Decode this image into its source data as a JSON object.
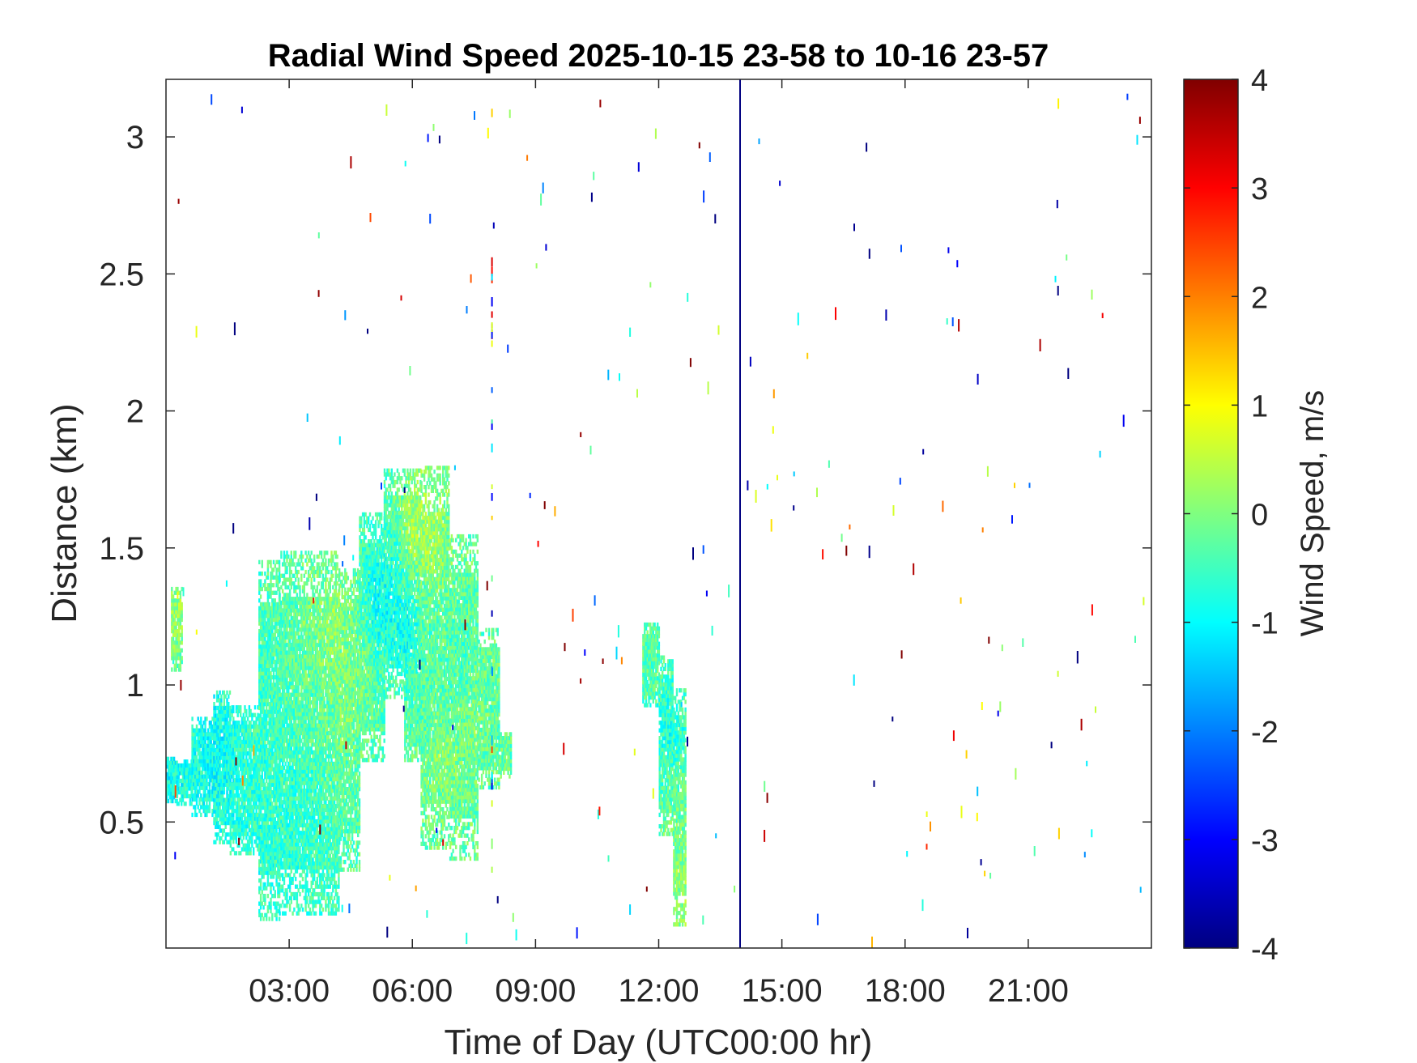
{
  "chart_data": {
    "type": "heatmap",
    "title": "Radial Wind Speed 2025-10-15 23-58 to 10-16 23-57",
    "xlabel": "Time of Day (UTC00:00 hr)",
    "ylabel": "Distance (km)",
    "colorbar_label": "Wind Speed, m/s",
    "x_unit": "hours",
    "xlim": [
      0,
      24
    ],
    "ylim": [
      0.04,
      3.21
    ],
    "clim": [
      -4,
      4
    ],
    "x_ticks": [
      3,
      6,
      9,
      12,
      15,
      18,
      21
    ],
    "x_tick_labels": [
      "03:00",
      "06:00",
      "09:00",
      "12:00",
      "15:00",
      "18:00",
      "21:00"
    ],
    "y_ticks": [
      0.5,
      1,
      1.5,
      2,
      2.5,
      3
    ],
    "y_tick_labels": [
      "0.5",
      "1",
      "1.5",
      "2",
      "2.5",
      "3"
    ],
    "colorbar_ticks": [
      -4,
      -3,
      -2,
      -1,
      0,
      1,
      2,
      3,
      4
    ],
    "colorbar_tick_labels": [
      "-4",
      "-3",
      "-2",
      "-1",
      "0",
      "1",
      "2",
      "3",
      "4"
    ],
    "colormap": "jet",
    "grid": false,
    "regions": [
      {
        "x": 0.02,
        "y": 0.62,
        "value": -1.0
      },
      {
        "x": 0.25,
        "y": 0.66,
        "value": -0.8
      },
      {
        "x": 0.3,
        "y": 1.25,
        "value": 0.3
      },
      {
        "x": 0.6,
        "y": 0.66,
        "value": -0.8
      },
      {
        "x": 1.2,
        "y": 0.75,
        "value": -1.1
      },
      {
        "x": 1.5,
        "y": 0.65,
        "value": -0.9
      },
      {
        "x": 1.9,
        "y": 0.6,
        "value": -0.6
      },
      {
        "x": 2.3,
        "y": 0.6,
        "value": -0.7
      },
      {
        "x": 2.5,
        "y": 0.45,
        "value": -0.6
      },
      {
        "x": 2.5,
        "y": 0.95,
        "value": -0.5
      },
      {
        "x": 2.7,
        "y": 0.4,
        "value": -0.7
      },
      {
        "x": 2.8,
        "y": 1.2,
        "value": -0.4
      },
      {
        "x": 3.0,
        "y": 0.7,
        "value": -0.6
      },
      {
        "x": 3.2,
        "y": 1.0,
        "value": -0.2
      },
      {
        "x": 3.4,
        "y": 0.55,
        "value": -0.7
      },
      {
        "x": 3.6,
        "y": 1.3,
        "value": 0.0
      },
      {
        "x": 3.8,
        "y": 0.8,
        "value": -0.3
      },
      {
        "x": 4.1,
        "y": 1.2,
        "value": 0.4
      },
      {
        "x": 4.3,
        "y": 0.95,
        "value": 0.1
      },
      {
        "x": 4.6,
        "y": 1.05,
        "value": 0.0
      },
      {
        "x": 5.2,
        "y": 1.3,
        "value": -1.3
      },
      {
        "x": 5.5,
        "y": 1.45,
        "value": -0.8
      },
      {
        "x": 5.8,
        "y": 1.2,
        "value": -1.2
      },
      {
        "x": 6.0,
        "y": 1.55,
        "value": 0.6
      },
      {
        "x": 6.4,
        "y": 1.5,
        "value": 0.4
      },
      {
        "x": 6.5,
        "y": 1.1,
        "value": -0.3
      },
      {
        "x": 6.7,
        "y": 0.7,
        "value": 0.2
      },
      {
        "x": 6.9,
        "y": 0.5,
        "value": -0.2
      },
      {
        "x": 7.2,
        "y": 1.1,
        "value": -0.5
      },
      {
        "x": 7.6,
        "y": 0.85,
        "value": 0.1
      },
      {
        "x": 7.9,
        "y": 0.8,
        "value": -0.4
      },
      {
        "x": 8.1,
        "y": 0.75,
        "value": -0.2
      },
      {
        "x": 11.8,
        "y": 1.05,
        "value": -0.3
      },
      {
        "x": 12.2,
        "y": 0.85,
        "value": -0.8
      },
      {
        "x": 12.4,
        "y": 0.45,
        "value": -0.2
      },
      {
        "x": 12.6,
        "y": 0.3,
        "value": 0.2
      }
    ]
  }
}
